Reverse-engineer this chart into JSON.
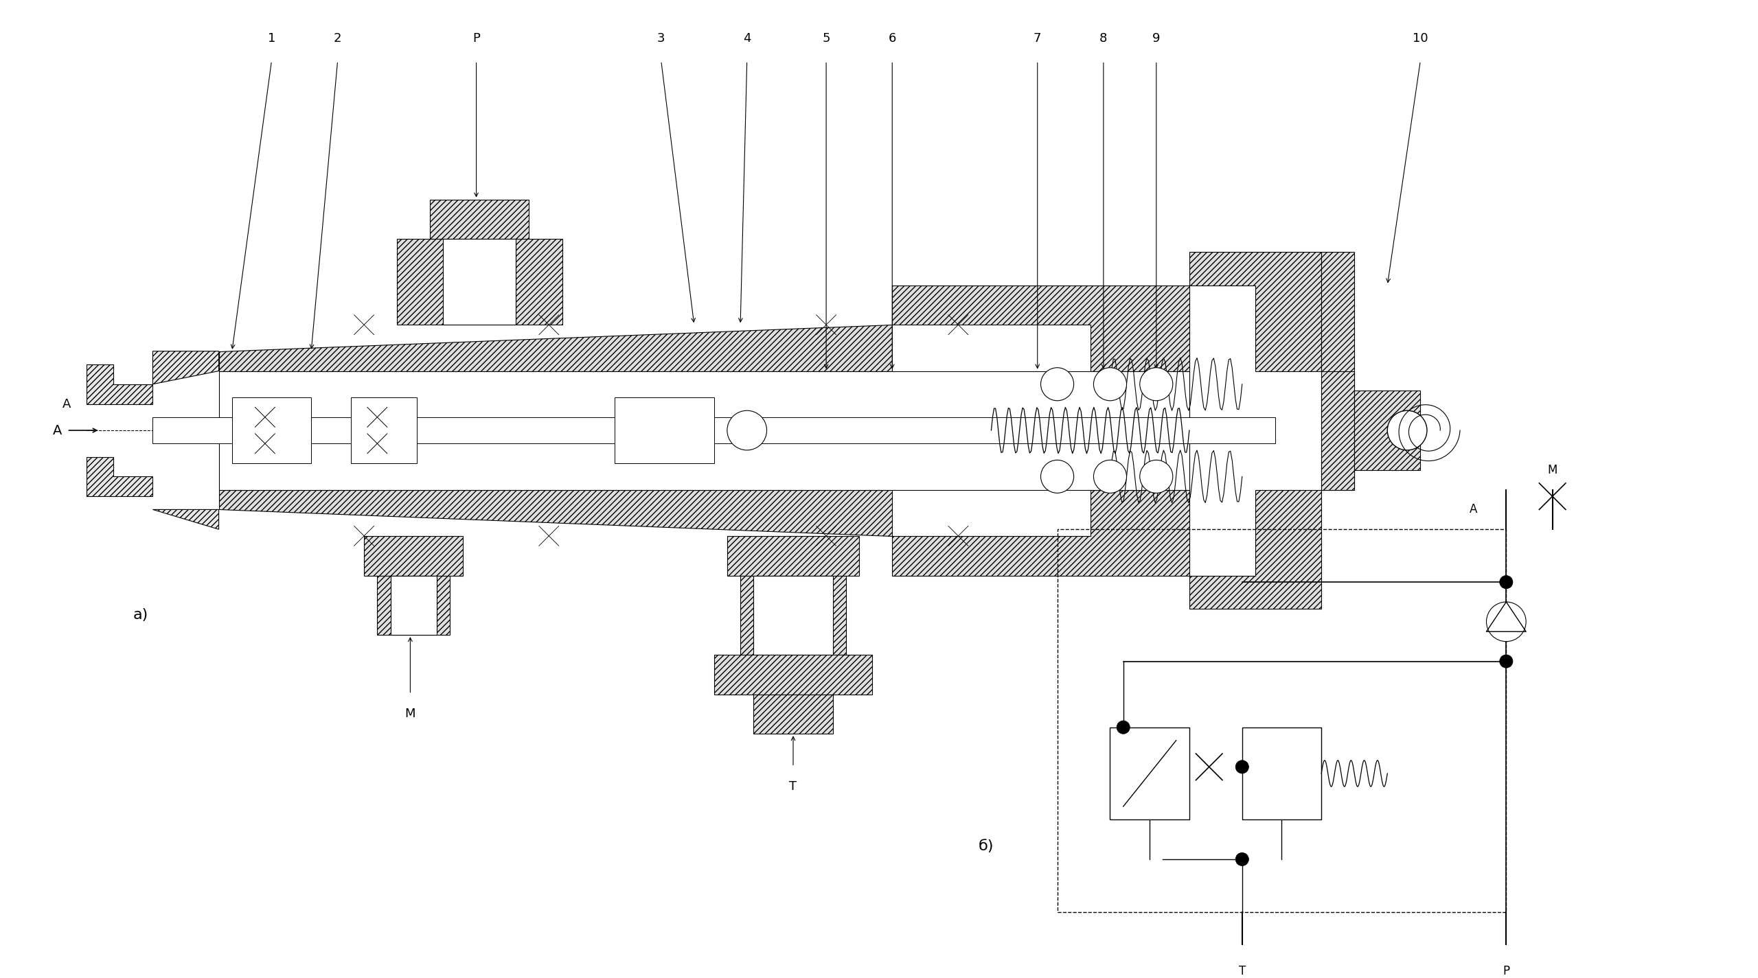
{
  "title": "",
  "bg_color": "#ffffff",
  "line_color": "#000000",
  "hatch_color": "#000000",
  "figsize": [
    25.6,
    14.25
  ],
  "dpi": 100,
  "labels": {
    "a": "а)",
    "b": "б)",
    "A_left": "А",
    "M_top": "М",
    "T_bottom": "Т",
    "num_1": "1",
    "num_2": "2",
    "num_P": "Р",
    "num_3": "3",
    "num_4": "4",
    "num_5": "5",
    "num_6": "6",
    "num_7": "7",
    "num_8": "8",
    "num_9": "9",
    "num_10": "10",
    "schema_A": "A",
    "schema_M": "M",
    "schema_T": "T",
    "schema_P": "P"
  }
}
